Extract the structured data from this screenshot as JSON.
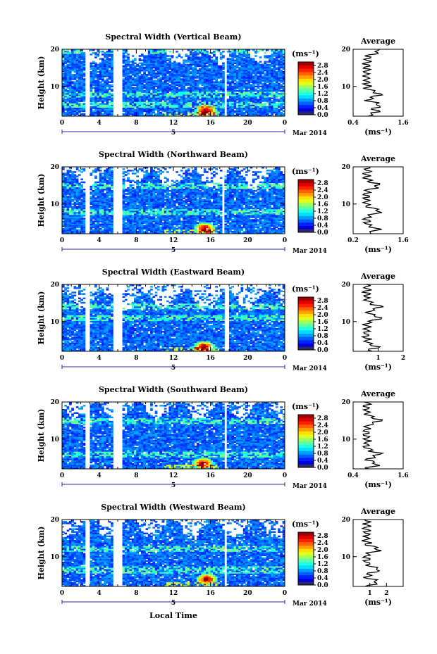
{
  "figure": {
    "xlabel": "Local Time",
    "date_label": "Mar 2014",
    "day_label": "5",
    "colorbar_unit": "(ms⁻¹)",
    "avg_title": "Average",
    "avg_xlabel": "(ms⁻¹)",
    "ylabel": "Height (km)"
  },
  "chart_data": [
    {
      "type": "heatmap",
      "title": "Spectral Width (Vertical Beam)",
      "ylabel": "Height (km)",
      "xlim": [
        0,
        24
      ],
      "ylim": [
        2,
        20
      ],
      "x_ticks": [
        "0",
        "4",
        "8",
        "12",
        "16",
        "20",
        "0"
      ],
      "y_ticks": [
        "10",
        "20"
      ],
      "colorbar": {
        "ticks": [
          "0.0",
          "0.4",
          "0.8",
          "1.2",
          "1.6",
          "2.0",
          "2.4",
          "2.8"
        ],
        "range": [
          0,
          3.0
        ],
        "unit": "(ms⁻¹)"
      },
      "gaps_hours": [
        [
          2.4,
          3.0
        ],
        [
          5.6,
          6.4
        ],
        [
          17.5,
          17.8
        ]
      ],
      "features": {
        "ragged_top_km": 18,
        "enhanced_layers_km": [
          19.5,
          8,
          5
        ],
        "hotspot": {
          "x": 15.5,
          "y": 3.5
        }
      },
      "average_profile": {
        "title": "Average",
        "xlim": [
          0.4,
          1.6
        ],
        "x_ticks": [
          "0.4",
          "1.6"
        ],
        "y_ticks": [
          "10",
          "20"
        ]
      }
    },
    {
      "type": "heatmap",
      "title": "Spectral Width (Northward Beam)",
      "ylabel": "Height (km)",
      "xlim": [
        0,
        24
      ],
      "ylim": [
        2,
        20
      ],
      "x_ticks": [
        "0",
        "4",
        "8",
        "12",
        "16",
        "20",
        "0"
      ],
      "y_ticks": [
        "10",
        "20"
      ],
      "colorbar": {
        "ticks": [
          "0.0",
          "0.4",
          "0.8",
          "1.2",
          "1.6",
          "2.0",
          "2.4",
          "2.8"
        ],
        "range": [
          0,
          3.0
        ],
        "unit": "(ms⁻¹)"
      },
      "gaps_hours": [
        [
          2.4,
          3.0
        ],
        [
          5.6,
          6.4
        ],
        [
          17.3,
          17.6
        ]
      ],
      "features": {
        "ragged_top_km": 16,
        "enhanced_layers_km": [
          15,
          8
        ],
        "hotspot": {
          "x": 15.4,
          "y": 3.5
        }
      },
      "average_profile": {
        "title": "Average",
        "xlim": [
          0.2,
          1.6
        ],
        "x_ticks": [
          "0.2",
          "1.6"
        ],
        "y_ticks": [
          "10",
          "20"
        ]
      }
    },
    {
      "type": "heatmap",
      "title": "Spectral Width (Eastward Beam)",
      "ylabel": "Height (km)",
      "xlim": [
        0,
        24
      ],
      "ylim": [
        2,
        20
      ],
      "x_ticks": [
        "0",
        "4",
        "8",
        "12",
        "16",
        "20",
        "0"
      ],
      "y_ticks": [
        "10",
        "20"
      ],
      "colorbar": {
        "ticks": [
          "0.0",
          "0.4",
          "0.8",
          "1.2",
          "1.6",
          "2.0",
          "2.4",
          "2.8"
        ],
        "range": [
          0,
          3.0
        ],
        "unit": "(ms⁻¹)"
      },
      "gaps_hours": [
        [
          2.4,
          3.0
        ],
        [
          5.6,
          6.4
        ],
        [
          17.6,
          17.9
        ]
      ],
      "features": {
        "ragged_top_km": 15,
        "enhanced_layers_km": [
          14,
          11
        ],
        "hotspot": {
          "x": 15.3,
          "y": 3.3
        }
      },
      "average_profile": {
        "title": "Average",
        "xlim": [
          0,
          2
        ],
        "x_ticks": [
          "1",
          "2"
        ],
        "y_ticks": [
          "10",
          "20"
        ]
      }
    },
    {
      "type": "heatmap",
      "title": "Spectral Width (Southward Beam)",
      "ylabel": "Height (km)",
      "xlim": [
        0,
        24
      ],
      "ylim": [
        2,
        20
      ],
      "x_ticks": [
        "0",
        "4",
        "8",
        "12",
        "16",
        "20",
        "0"
      ],
      "y_ticks": [
        "10",
        "20"
      ],
      "colorbar": {
        "ticks": [
          "0.0",
          "0.4",
          "0.8",
          "1.2",
          "1.6",
          "2.0",
          "2.4",
          "2.8"
        ],
        "range": [
          0,
          3.0
        ],
        "unit": "(ms⁻¹)"
      },
      "gaps_hours": [
        [
          2.4,
          3.0
        ],
        [
          5.6,
          6.4
        ],
        [
          17.4,
          17.7
        ]
      ],
      "features": {
        "ragged_top_km": 17,
        "enhanced_layers_km": [
          15,
          6
        ],
        "hotspot": {
          "x": 15.2,
          "y": 3.5
        }
      },
      "average_profile": {
        "title": "Average",
        "xlim": [
          0.4,
          1.6
        ],
        "x_ticks": [
          "0.4",
          "1.6"
        ],
        "y_ticks": [
          "10",
          "20"
        ]
      }
    },
    {
      "type": "heatmap",
      "title": "Spectral Width (Westward Beam)",
      "ylabel": "Height (km)",
      "xlim": [
        0,
        24
      ],
      "ylim": [
        2,
        20
      ],
      "x_ticks": [
        "0",
        "4",
        "8",
        "12",
        "16",
        "20",
        "0"
      ],
      "y_ticks": [
        "10",
        "20"
      ],
      "colorbar": {
        "ticks": [
          "0.0",
          "0.4",
          "0.8",
          "1.2",
          "1.6",
          "2.0",
          "2.4",
          "2.8"
        ],
        "range": [
          0,
          3.0
        ],
        "unit": "(ms⁻¹)"
      },
      "gaps_hours": [
        [
          2.4,
          3.0
        ],
        [
          5.6,
          6.4
        ],
        [
          17.5,
          17.8
        ]
      ],
      "features": {
        "ragged_top_km": 17,
        "enhanced_layers_km": [
          12,
          6.5
        ],
        "hotspot": {
          "x": 15.6,
          "y": 4
        }
      },
      "average_profile": {
        "title": "Average",
        "xlim": [
          0,
          3
        ],
        "x_ticks": [
          "1",
          "2"
        ],
        "y_ticks": [
          "10",
          "20"
        ]
      }
    }
  ]
}
